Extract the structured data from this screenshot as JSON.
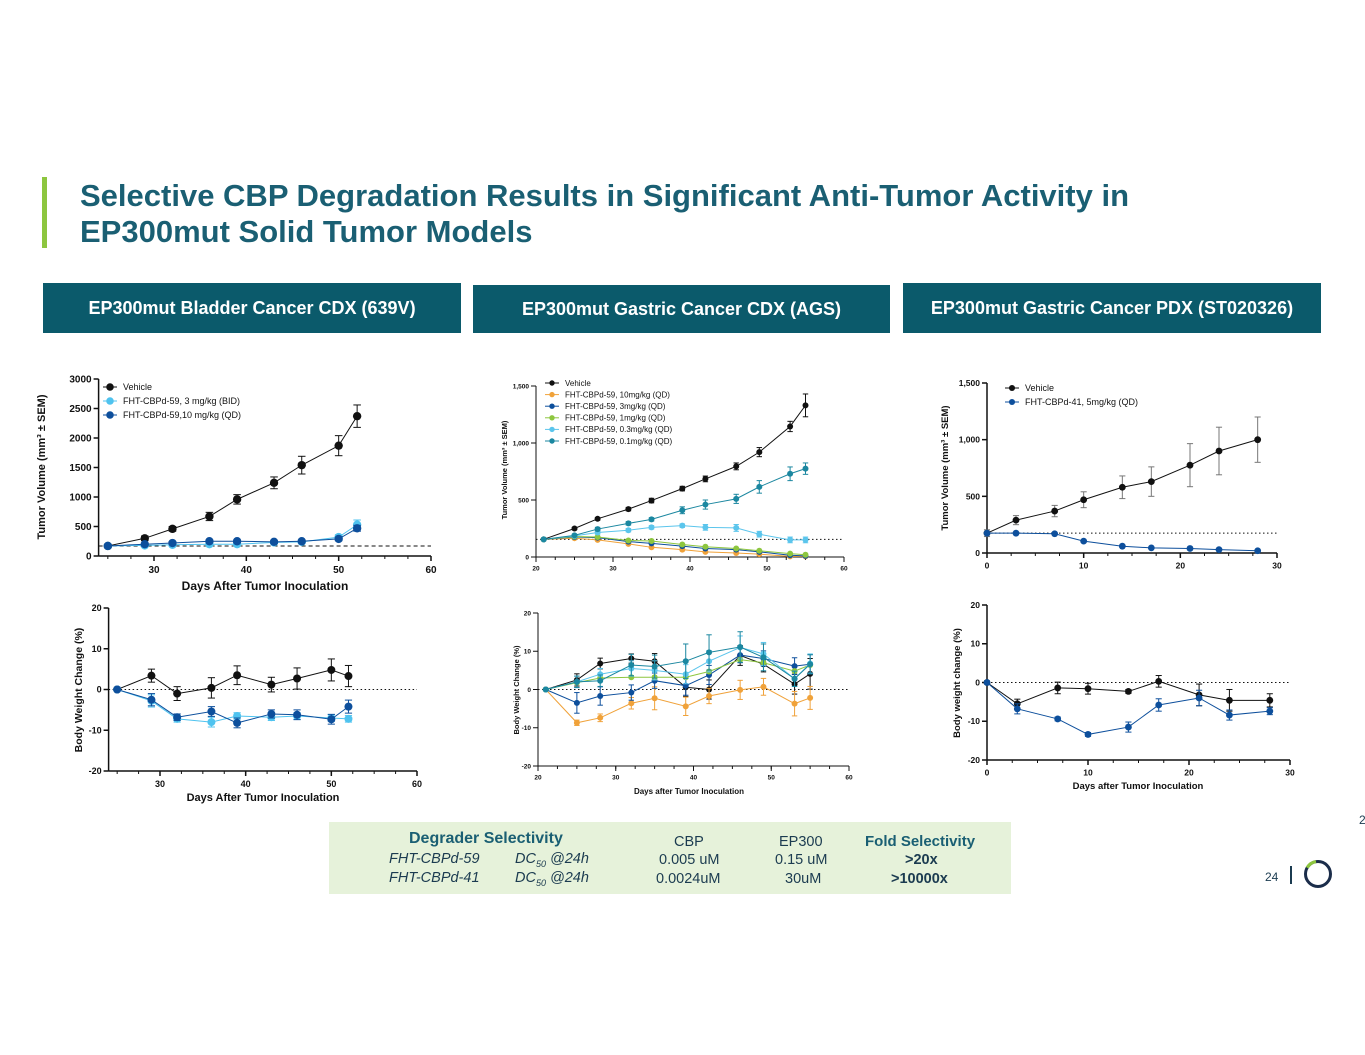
{
  "title": "Selective CBP Degradation Results in Significant Anti-Tumor Activity in EP300mut Solid Tumor Models",
  "panels": [
    "EP300mut Bladder Cancer CDX (639V)",
    "EP300mut Gastric Cancer CDX (AGS)",
    "EP300mut Gastric Cancer PDX (ST020326)"
  ],
  "selectivity": {
    "header": "Degrader Selectivity",
    "col_cbp": "CBP",
    "col_ep300": "EP300",
    "col_fold": "Fold Selectivity",
    "rows": [
      {
        "compound": "FHT-CBPd-59",
        "metric": "DC",
        "sub": "50",
        "time": "@24h",
        "cbp": "0.005 uM",
        "ep300": "0.15 uM",
        "fold": ">20x"
      },
      {
        "compound": "FHT-CBPd-41",
        "metric": "DC",
        "sub": "50",
        "time": "@24h",
        "cbp": "0.0024uM",
        "ep300": "30uM",
        "fold": ">10000x"
      }
    ]
  },
  "footer": {
    "page": "24",
    "cut_text": "2"
  },
  "colors": {
    "vehicle": "#111111",
    "light_blue": "#4fc3ef",
    "navy": "#0d4f9c",
    "orange": "#f0a23a",
    "green": "#8dc63f",
    "sky": "#5bc5ec",
    "teal": "#1b87a0",
    "panel": "#0b5a6b"
  },
  "chart_data": [
    {
      "type": "line",
      "title": "",
      "xlabel": "Days After Tumor Inoculation",
      "ylabel": "Tumor Volume (mm³ ± SEM)",
      "xlim": [
        24,
        60
      ],
      "ylim": [
        0,
        3000
      ],
      "baseline": 170,
      "xticks": [
        30,
        40,
        50,
        60
      ],
      "xtick_labels": [
        "30",
        "40",
        "50",
        "60"
      ],
      "yticks": [
        0,
        500,
        1000,
        1500,
        2000,
        2500,
        3000
      ],
      "ytick_labels": [
        "0",
        "500",
        "1000",
        "1500",
        "2000",
        "2500",
        "3000"
      ],
      "x": [
        25,
        29,
        32,
        36,
        39,
        43,
        46,
        50,
        52
      ],
      "series": [
        {
          "name": "Vehicle",
          "color": "#111111",
          "values": [
            170,
            300,
            460,
            670,
            960,
            1240,
            1540,
            1870,
            2370
          ],
          "err": [
            30,
            40,
            40,
            70,
            80,
            100,
            150,
            170,
            190
          ]
        },
        {
          "name": "FHT-CBPd-59, 3 mg/kg (BID)",
          "color": "#4fc3ef",
          "values": [
            170,
            180,
            190,
            200,
            200,
            230,
            240,
            320,
            530
          ],
          "err": [
            20,
            20,
            20,
            20,
            20,
            20,
            20,
            40,
            80
          ]
        },
        {
          "name": "FHT-CBPd-59,10 mg/kg (QD)",
          "color": "#0d4f9c",
          "values": [
            170,
            200,
            220,
            250,
            250,
            240,
            250,
            290,
            470
          ],
          "err": [
            20,
            20,
            20,
            20,
            20,
            20,
            20,
            30,
            50
          ]
        }
      ]
    },
    {
      "type": "line",
      "title": "",
      "xlabel": "",
      "ylabel": "Tumor Volume (mm³ ± SEM)",
      "xlim": [
        20,
        60
      ],
      "ylim": [
        0,
        1500
      ],
      "baseline": 155,
      "xticks": [
        20,
        30,
        40,
        50,
        60
      ],
      "xtick_labels": [
        "20",
        "30",
        "40",
        "50",
        "60"
      ],
      "yticks": [
        0,
        500,
        1000,
        1500
      ],
      "ytick_labels": [
        "0",
        "500",
        "1,000",
        "1,500"
      ],
      "x": [
        21,
        25,
        28,
        32,
        35,
        39,
        42,
        46,
        49,
        53,
        55
      ],
      "series": [
        {
          "name": "Vehicle",
          "color": "#111111",
          "values": [
            155,
            250,
            335,
            420,
            495,
            600,
            685,
            795,
            920,
            1145,
            1330
          ],
          "err": [
            5,
            10,
            12,
            15,
            20,
            20,
            25,
            30,
            40,
            45,
            100
          ]
        },
        {
          "name": "FHT-CBPd-59, 10mg/kg (QD)",
          "color": "#f0a23a",
          "values": [
            155,
            165,
            150,
            115,
            85,
            65,
            45,
            35,
            25,
            5,
            5
          ]
        },
        {
          "name": "FHT-CBPd-59, 3mg/kg (QD)",
          "color": "#0d4f9c",
          "values": [
            155,
            175,
            170,
            135,
            120,
            95,
            75,
            65,
            45,
            15,
            10
          ]
        },
        {
          "name": "FHT-CBPd-59, 1mg/kg (QD)",
          "color": "#8dc63f",
          "values": [
            155,
            180,
            175,
            145,
            140,
            110,
            90,
            75,
            55,
            30,
            20
          ]
        },
        {
          "name": "FHT-CBPd-59, 0.3mg/kg (QD)",
          "color": "#5bc5ec",
          "values": [
            155,
            185,
            215,
            235,
            260,
            275,
            260,
            255,
            200,
            150,
            150
          ],
          "err": [
            5,
            10,
            15,
            15,
            15,
            15,
            25,
            30,
            25,
            25,
            25
          ]
        },
        {
          "name": "FHT-CBPd-59, 0.1mg/kg (QD)",
          "color": "#1b87a0",
          "values": [
            155,
            190,
            245,
            295,
            330,
            410,
            460,
            510,
            615,
            730,
            775
          ],
          "err": [
            5,
            10,
            15,
            15,
            15,
            30,
            40,
            40,
            55,
            60,
            50
          ]
        }
      ]
    },
    {
      "type": "line",
      "title": "",
      "xlabel": "",
      "ylabel": "Tumor Volume (mm³ ± SEM)",
      "xlim": [
        0,
        30
      ],
      "ylim": [
        0,
        1500
      ],
      "baseline": 175,
      "xticks": [
        0,
        10,
        20,
        30
      ],
      "xtick_labels": [
        "0",
        "10",
        "20",
        "30"
      ],
      "yticks": [
        0,
        500,
        1000,
        1500
      ],
      "ytick_labels": [
        "0",
        "500",
        "1,000",
        "1,500"
      ],
      "x": [
        0,
        3,
        7,
        10,
        14,
        17,
        21,
        24,
        28
      ],
      "series": [
        {
          "name": "Vehicle",
          "color": "#111111",
          "values": [
            175,
            290,
            370,
            470,
            580,
            630,
            775,
            900,
            1000
          ],
          "err": [
            30,
            40,
            50,
            70,
            100,
            130,
            190,
            210,
            200
          ]
        },
        {
          "name": "FHT-CBPd-41, 5mg/kg (QD)",
          "color": "#0d4f9c",
          "values": [
            175,
            175,
            170,
            105,
            60,
            45,
            40,
            30,
            20
          ]
        }
      ]
    },
    {
      "type": "line",
      "title": "",
      "xlabel": "Days After Tumor Inoculation",
      "ylabel": "Body Weight Change (%)",
      "xlim": [
        24,
        60
      ],
      "ylim": [
        -20,
        20
      ],
      "baseline": 0,
      "xticks": [
        30,
        40,
        50,
        60
      ],
      "xtick_labels": [
        "30",
        "40",
        "50",
        "60"
      ],
      "yticks": [
        -20,
        -10,
        0,
        10,
        20
      ],
      "ytick_labels": [
        "-20",
        "-10",
        "0",
        "10",
        "20"
      ],
      "x": [
        25,
        29,
        32,
        36,
        39,
        43,
        46,
        50,
        52
      ],
      "series": [
        {
          "name": "Vehicle",
          "color": "#111111",
          "values": [
            0,
            3.4,
            -1,
            0.4,
            3.5,
            1.2,
            2.7,
            4.8,
            3.3
          ],
          "err": [
            0,
            1.6,
            1.7,
            2.5,
            2.3,
            1.8,
            2.6,
            2.7,
            2.6
          ]
        },
        {
          "name": "FHT-CBPd-59, 3 mg/kg (BID)",
          "color": "#4fc3ef",
          "values": [
            0,
            -2.8,
            -7.2,
            -8,
            -6.5,
            -6.8,
            -6.5,
            -7,
            -7.2
          ],
          "err": [
            0,
            1.5,
            0.8,
            1.2,
            0.8,
            0.8,
            0.8,
            0.8,
            0.8
          ]
        },
        {
          "name": "FHT-CBPd-59,10 mg/kg (QD)",
          "color": "#0d4f9c",
          "values": [
            0,
            -2.5,
            -6.8,
            -5.4,
            -8.2,
            -6,
            -6.2,
            -7.3,
            -4.2
          ],
          "err": [
            0,
            1.5,
            0.8,
            1.2,
            1.2,
            1,
            1.2,
            1.2,
            1.6
          ]
        }
      ]
    },
    {
      "type": "line",
      "title": "",
      "xlabel": "Days after Tumor Inoculation",
      "ylabel": "Body Weight Change (%)",
      "xlim": [
        20,
        60
      ],
      "ylim": [
        -20,
        20
      ],
      "baseline": 0,
      "xticks": [
        20,
        30,
        40,
        50,
        60
      ],
      "xtick_labels": [
        "20",
        "30",
        "40",
        "50",
        "60"
      ],
      "yticks": [
        -20,
        -10,
        0,
        10,
        20
      ],
      "ytick_labels": [
        "-20",
        "-10",
        "0",
        "10",
        "20"
      ],
      "x": [
        21,
        25,
        28,
        32,
        35,
        39,
        42,
        46,
        49,
        53,
        55
      ],
      "series": [
        {
          "name": "Vehicle",
          "color": "#111111",
          "values": [
            0,
            2.5,
            6.8,
            8.1,
            7.4,
            0.6,
            0,
            8.9,
            6.6,
            1.4,
            4.1
          ],
          "err": [
            0,
            1.6,
            1.4,
            1.2,
            2,
            2.4,
            2.5,
            2.6,
            2,
            2.6,
            4
          ]
        },
        {
          "name": "FHT-CBPd-59, 10mg/kg (QD)",
          "color": "#f0a23a",
          "values": [
            0,
            -8.7,
            -7.4,
            -3.6,
            -2.3,
            -4.4,
            -1.7,
            -0.1,
            0.7,
            -3.7,
            -2.2
          ],
          "err": [
            0,
            0.7,
            1,
            1.5,
            3,
            2.4,
            2,
            2.5,
            2.2,
            3.2,
            3
          ]
        },
        {
          "name": "FHT-CBPd-59, 3mg/kg (QD)",
          "color": "#0d4f9c",
          "values": [
            0,
            -3.5,
            -1.7,
            -0.8,
            2.3,
            1,
            3.8,
            9,
            8.1,
            6.1,
            6.6
          ],
          "err": [
            0,
            2.7,
            2.4,
            2,
            2,
            2.5,
            2.5,
            2,
            2,
            2.2,
            2.5
          ]
        },
        {
          "name": "FHT-CBPd-59, 1mg/kg (QD)",
          "color": "#8dc63f",
          "values": [
            0,
            1.8,
            3,
            3.2,
            3.2,
            3.2,
            4.7,
            7.8,
            7,
            4.8,
            6.4
          ]
        },
        {
          "name": "FHT-CBPd-59, 0.3mg/kg (QD)",
          "color": "#5bc5ec",
          "values": [
            0,
            2,
            4,
            5.5,
            5,
            4,
            7.4,
            11,
            9.3,
            2.8,
            6.8
          ],
          "err": [
            0,
            1.5,
            1.5,
            2,
            2.5,
            2.5,
            2.8,
            3,
            3,
            2,
            2.5
          ]
        },
        {
          "name": "FHT-CBPd-59, 0.1mg/kg (QD)",
          "color": "#1b87a0",
          "values": [
            0,
            2,
            2.3,
            6.4,
            6,
            7.4,
            9.7,
            11.1,
            8.4,
            2.8,
            6.6
          ],
          "err": [
            0,
            1.5,
            1.5,
            2.8,
            3,
            4.5,
            4.6,
            4,
            3.5,
            2,
            2.5
          ]
        }
      ]
    },
    {
      "type": "line",
      "title": "",
      "xlabel": "Days after Tumor Inoculation",
      "ylabel": "Body weight change (%)",
      "xlim": [
        0,
        30
      ],
      "ylim": [
        -20,
        20
      ],
      "baseline": 0,
      "xticks": [
        0,
        10,
        20,
        30
      ],
      "xtick_labels": [
        "0",
        "10",
        "20",
        "30"
      ],
      "yticks": [
        -20,
        -10,
        0,
        10,
        20
      ],
      "ytick_labels": [
        "-20",
        "-10",
        "0",
        "10",
        "20"
      ],
      "x": [
        0,
        3,
        7,
        10,
        14,
        17,
        21,
        24,
        28
      ],
      "series": [
        {
          "name": "Vehicle",
          "color": "#111111",
          "values": [
            0,
            -5.5,
            -1.4,
            -1.6,
            -2.3,
            0.3,
            -3.2,
            -4.6,
            -4.6
          ],
          "err": [
            0,
            1.2,
            1.5,
            1.4,
            0.5,
            1.5,
            2.8,
            2.8,
            1.7
          ]
        },
        {
          "name": "FHT-CBPd-41, 5mg/kg (QD)",
          "color": "#0d4f9c",
          "values": [
            0,
            -6.8,
            -9.4,
            -13.4,
            -11.5,
            -5.8,
            -4,
            -8.4,
            -7.4
          ],
          "err": [
            0,
            1.3,
            0.5,
            0.5,
            1.3,
            1.6,
            2,
            1.3,
            0.9
          ]
        }
      ]
    }
  ]
}
